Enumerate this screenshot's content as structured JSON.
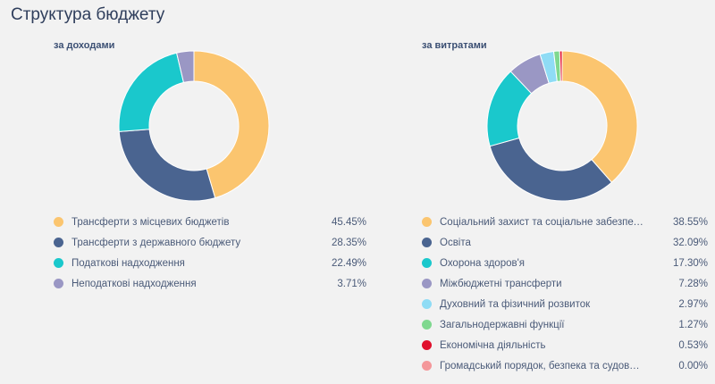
{
  "page": {
    "title": "Структура бюджету"
  },
  "chart_data": [
    {
      "type": "pie",
      "title": "за доходами",
      "categories": [
        "Трансферти з місцевих бюджетів",
        "Трансферти з державного бюджету",
        "Податкові надходження",
        "Неподаткові надходження"
      ],
      "values": [
        45.45,
        28.35,
        22.49,
        3.71
      ],
      "labels": [
        "45.45%",
        "28.35%",
        "22.49%",
        "3.71%"
      ],
      "colors": [
        "#fbc56f",
        "#4a6490",
        "#1ac8cc",
        "#9a97c4"
      ]
    },
    {
      "type": "pie",
      "title": "за витратами",
      "categories": [
        "Соціальний захист та соціальне забезпечення",
        "Освіта",
        "Охорона здоров'я",
        "Міжбюджетні трансферти",
        "Духовний та фізичний розвиток",
        "Загальнодержавні функції",
        "Економічна діяльність",
        "Громадський порядок, безпека та судова влада"
      ],
      "display_labels": [
        "Соціальний захист та соціальне забезпече...",
        "Освіта",
        "Охорона здоров'я",
        "Міжбюджетні трансферти",
        "Духовний та фізичний розвиток",
        "Загальнодержавні функції",
        "Економічна діяльність",
        "Громадський порядок, безпека та судова в..."
      ],
      "values": [
        38.55,
        32.09,
        17.3,
        7.28,
        2.97,
        1.27,
        0.53,
        0.0
      ],
      "labels": [
        "38.55%",
        "32.09%",
        "17.30%",
        "7.28%",
        "2.97%",
        "1.27%",
        "0.53%",
        "0.00%"
      ],
      "colors": [
        "#fbc56f",
        "#4a6490",
        "#1ac8cc",
        "#9a97c4",
        "#8fdcf5",
        "#7fd88f",
        "#e0102c",
        "#f4979a"
      ]
    }
  ]
}
